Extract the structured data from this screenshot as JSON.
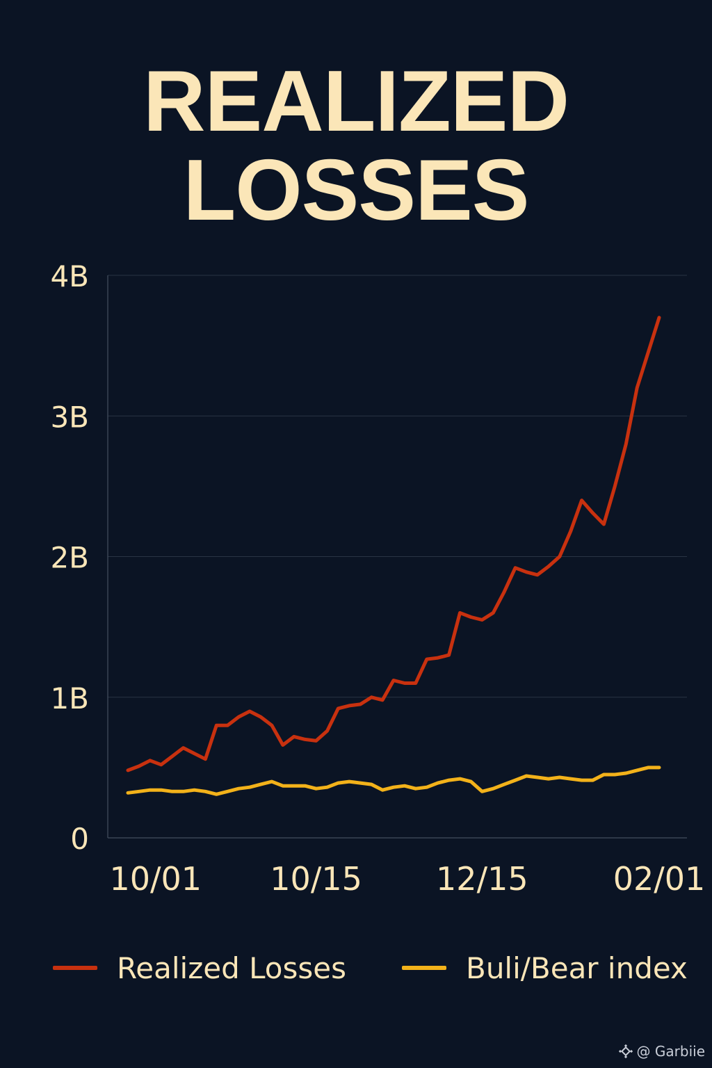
{
  "chart_data": {
    "type": "line",
    "title_lines": [
      "REALIZED",
      "LOSSES"
    ],
    "xlabel": "",
    "ylabel": "",
    "y_ticks": [
      {
        "value": 0,
        "label": "0"
      },
      {
        "value": 1,
        "label": "1B"
      },
      {
        "value": 2,
        "label": "2B"
      },
      {
        "value": 3,
        "label": "3B"
      },
      {
        "value": 4,
        "label": "4B"
      }
    ],
    "ylim": [
      0,
      4
    ],
    "y_unit": "B",
    "x_ticks": [
      {
        "index": 2.5,
        "label": "10/01"
      },
      {
        "index": 17,
        "label": "10/15"
      },
      {
        "index": 32,
        "label": "12/15"
      },
      {
        "index": 48,
        "label": "02/01"
      }
    ],
    "x_count": 52,
    "grid": true,
    "legend_position": "bottom",
    "series": [
      {
        "name": "Realized Losses",
        "color": "#c8310f",
        "values": [
          0.48,
          0.51,
          0.55,
          0.52,
          0.58,
          0.64,
          0.6,
          0.56,
          0.8,
          0.8,
          0.86,
          0.9,
          0.86,
          0.8,
          0.66,
          0.72,
          0.7,
          0.69,
          0.76,
          0.92,
          0.94,
          0.95,
          1.0,
          0.98,
          1.12,
          1.1,
          1.1,
          1.27,
          1.28,
          1.3,
          1.6,
          1.57,
          1.55,
          1.6,
          1.75,
          1.92,
          1.89,
          1.87,
          1.93,
          2.0,
          2.18,
          2.4,
          2.31,
          2.23,
          2.5,
          2.8,
          3.2,
          3.45,
          3.7
        ]
      },
      {
        "name": "Buli/Bear index",
        "color": "#f3b21a",
        "values": [
          0.32,
          0.33,
          0.34,
          0.34,
          0.33,
          0.33,
          0.34,
          0.33,
          0.31,
          0.33,
          0.35,
          0.36,
          0.38,
          0.4,
          0.37,
          0.37,
          0.37,
          0.35,
          0.36,
          0.39,
          0.4,
          0.39,
          0.38,
          0.34,
          0.36,
          0.37,
          0.35,
          0.36,
          0.39,
          0.41,
          0.42,
          0.4,
          0.33,
          0.35,
          0.38,
          0.41,
          0.44,
          0.43,
          0.42,
          0.43,
          0.42,
          0.41,
          0.41,
          0.45,
          0.45,
          0.46,
          0.48,
          0.5,
          0.5
        ]
      }
    ]
  },
  "watermark": {
    "text": "@ Garbiie",
    "icon": "binance-diamond-icon"
  },
  "colors": {
    "background": "#0b1424",
    "text": "#fbe6b8",
    "grid": "#2a3444",
    "axis": "#3a4454"
  }
}
